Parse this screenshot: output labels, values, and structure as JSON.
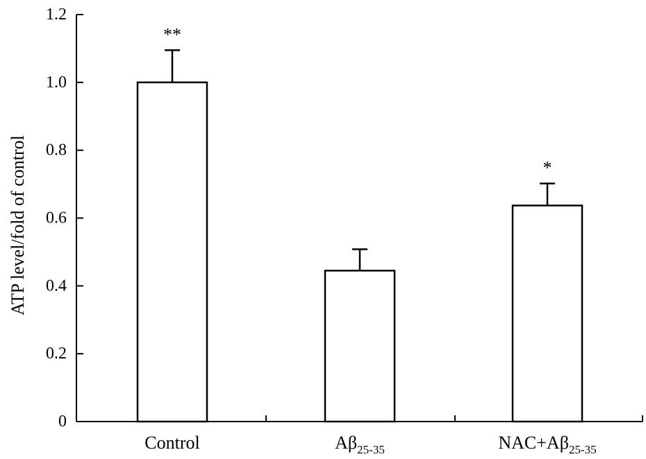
{
  "chart_data": {
    "type": "bar",
    "title": "",
    "xlabel": "",
    "ylabel": "ATP level/fold of control",
    "ylim": [
      0,
      1.2
    ],
    "yticks": [
      "0",
      "0.2",
      "0.4",
      "0.6",
      "0.8",
      "1.0",
      "1.2"
    ],
    "categories": [
      {
        "main": "Control",
        "sub": ""
      },
      {
        "main": "Aβ",
        "sub": "25-35"
      },
      {
        "main": "NAC+Aβ",
        "sub": "25-35"
      }
    ],
    "values": [
      1.0,
      0.445,
      0.637
    ],
    "errors": [
      0.095,
      0.063,
      0.065
    ],
    "significance": [
      "**",
      "",
      "*"
    ],
    "grid": false,
    "legend": "none"
  }
}
